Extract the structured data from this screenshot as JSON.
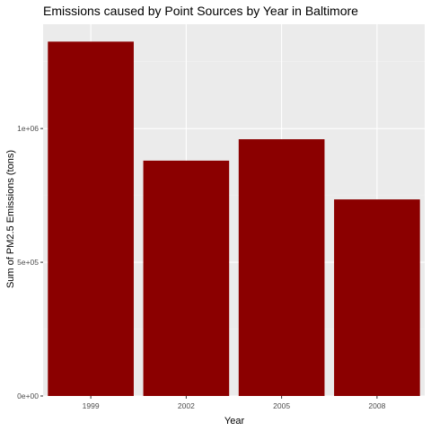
{
  "chart_data": {
    "type": "bar",
    "title": "Emissions caused by Point Sources by Year in Baltimore",
    "xlabel": "Year",
    "ylabel": "Sum of PM2.5 Emissions (tons)",
    "categories": [
      "1999",
      "2002",
      "2005",
      "2008"
    ],
    "values": [
      1325000,
      880000,
      960000,
      735000
    ],
    "ylim": [
      0,
      1390000
    ],
    "yticks": [
      0,
      500000,
      1000000
    ],
    "ytick_labels": [
      "0e+00",
      "5e+05",
      "1e+06"
    ],
    "grid": true,
    "legend": "none",
    "colors": {
      "bar": "#8b0000",
      "panel": "#ebebeb",
      "grid_major": "#ffffff",
      "grid_minor": "#f2f2f2",
      "tick": "#333333"
    }
  }
}
